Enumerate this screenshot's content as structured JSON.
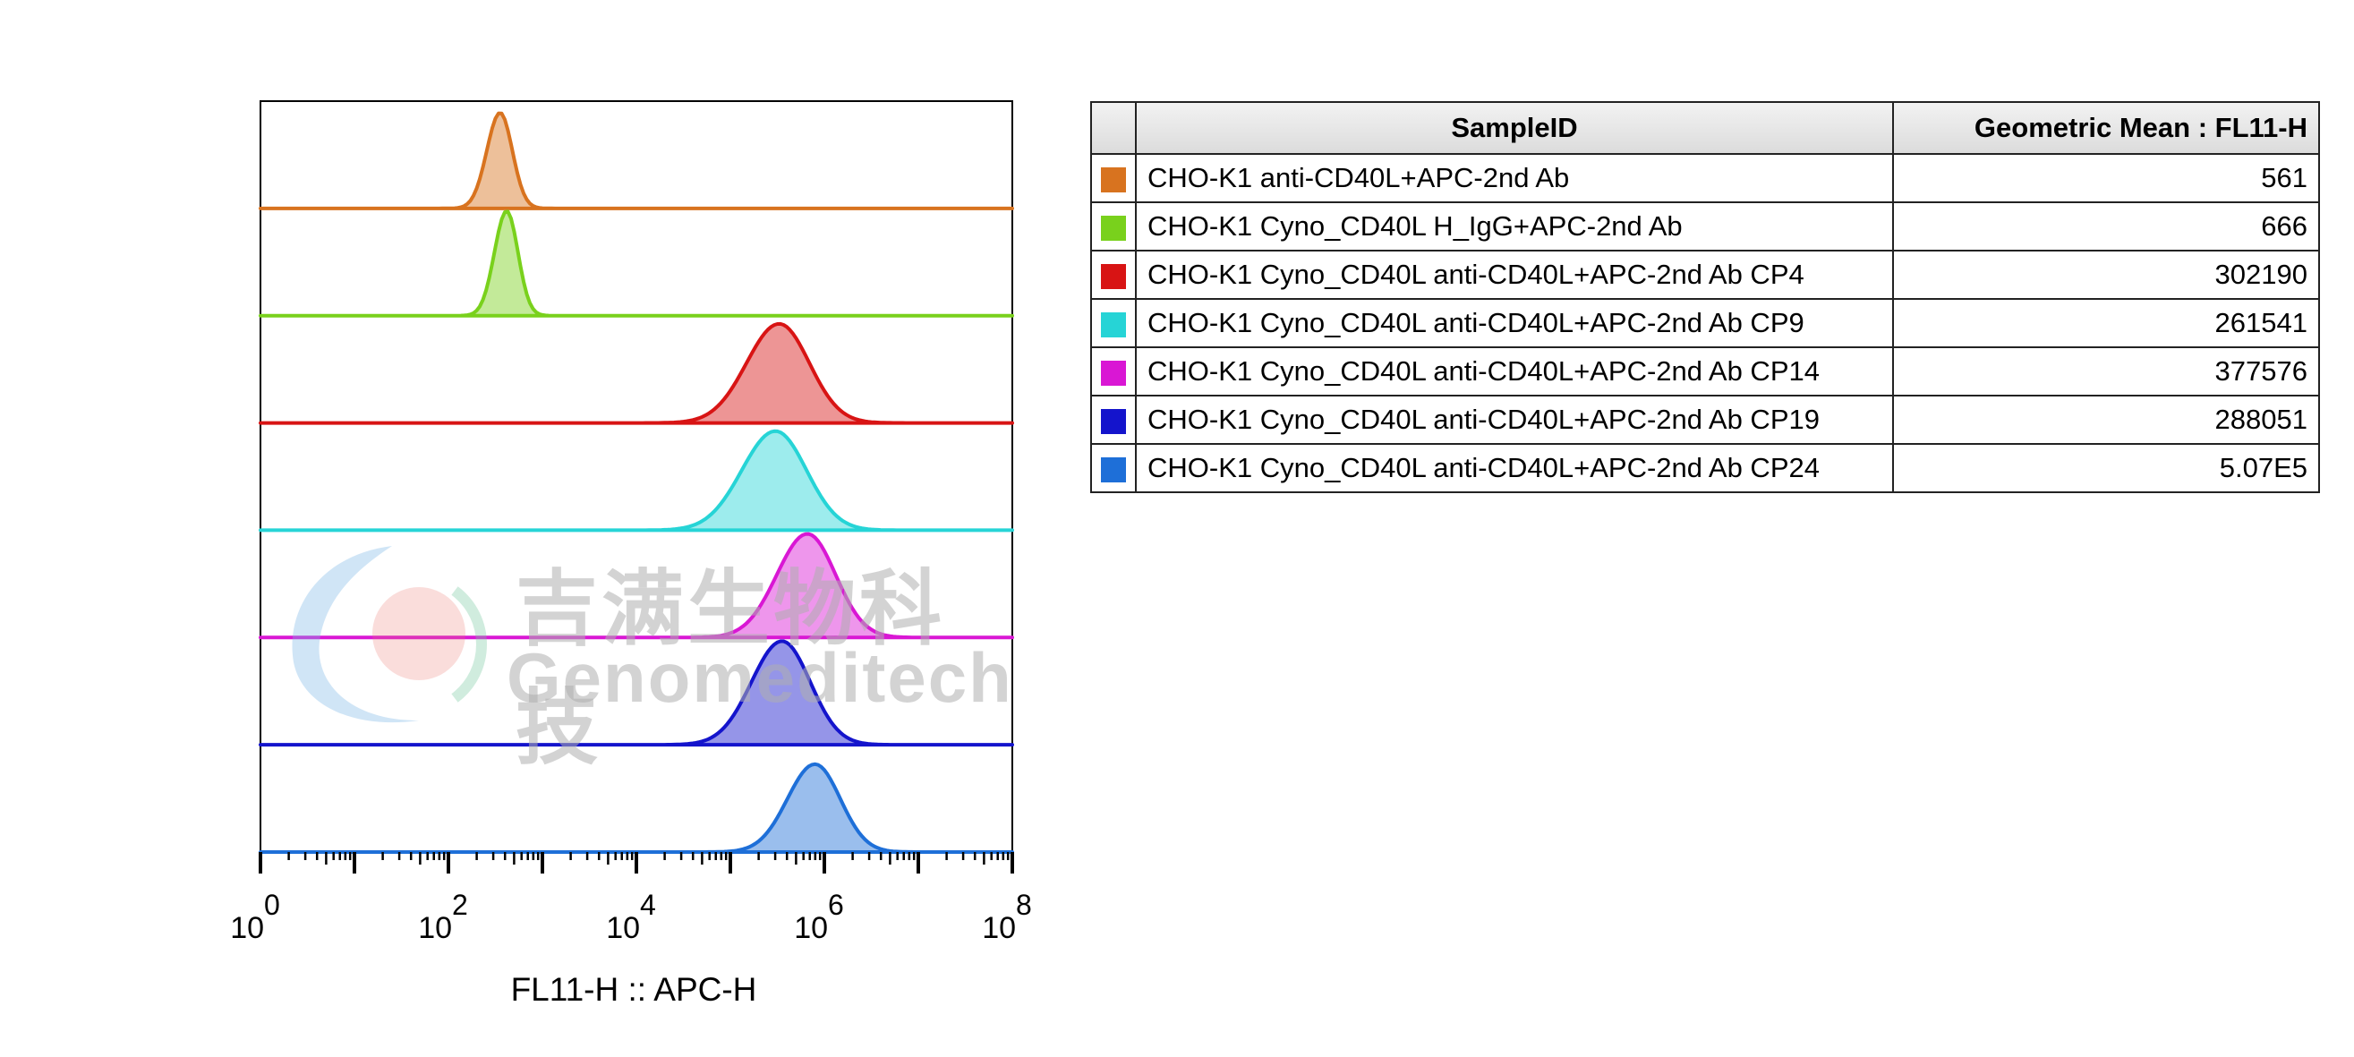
{
  "chart_data": {
    "type": "histogram-overlay",
    "xlabel": "FL11-H :: APC-H",
    "x_scale": "log",
    "xlim": [
      1,
      100000000
    ],
    "tick_labels": [
      {
        "base": "10",
        "exp": "0",
        "value": 1
      },
      {
        "base": "10",
        "exp": "2",
        "value": 100
      },
      {
        "base": "10",
        "exp": "4",
        "value": 10000
      },
      {
        "base": "10",
        "exp": "6",
        "value": 1000000
      },
      {
        "base": "10",
        "exp": "8",
        "value": 100000000
      }
    ],
    "series": [
      {
        "color": "#d8731f",
        "peak_log10": 2.55,
        "sigma": 0.13,
        "peak": 0.85
      },
      {
        "color": "#79d11c",
        "peak_log10": 2.62,
        "sigma": 0.12,
        "peak": 0.93
      },
      {
        "color": "#d81414",
        "peak_log10": 5.52,
        "sigma": 0.32,
        "peak": 0.88
      },
      {
        "color": "#26d4d6",
        "peak_log10": 5.48,
        "sigma": 0.33,
        "peak": 0.88
      },
      {
        "color": "#d917d4",
        "peak_log10": 5.82,
        "sigma": 0.3,
        "peak": 0.92
      },
      {
        "color": "#1414cc",
        "peak_log10": 5.55,
        "sigma": 0.3,
        "peak": 0.92
      },
      {
        "color": "#1e6fd8",
        "peak_log10": 5.9,
        "sigma": 0.27,
        "peak": 0.78
      }
    ]
  },
  "table": {
    "headers": {
      "sample": "SampleID",
      "mean": "Geometric Mean : FL11-H"
    },
    "rows": [
      {
        "color": "#d8731f",
        "sample": "CHO-K1 anti-CD40L+APC-2nd Ab",
        "mean": "561"
      },
      {
        "color": "#79d11c",
        "sample": "CHO-K1 Cyno_CD40L H_IgG+APC-2nd Ab",
        "mean": "666"
      },
      {
        "color": "#d81414",
        "sample": "CHO-K1 Cyno_CD40L anti-CD40L+APC-2nd Ab CP4",
        "mean": "302190"
      },
      {
        "color": "#26d4d6",
        "sample": "CHO-K1 Cyno_CD40L anti-CD40L+APC-2nd Ab CP9",
        "mean": "261541"
      },
      {
        "color": "#d917d4",
        "sample": "CHO-K1 Cyno_CD40L anti-CD40L+APC-2nd Ab CP14",
        "mean": "377576"
      },
      {
        "color": "#1414cc",
        "sample": "CHO-K1 Cyno_CD40L anti-CD40L+APC-2nd Ab CP19",
        "mean": "288051"
      },
      {
        "color": "#1e6fd8",
        "sample": "CHO-K1 Cyno_CD40L anti-CD40L+APC-2nd Ab CP24",
        "mean": "5.07E5"
      }
    ]
  },
  "watermark": {
    "cn": "吉满生物科技",
    "en": "Genomeditech"
  }
}
